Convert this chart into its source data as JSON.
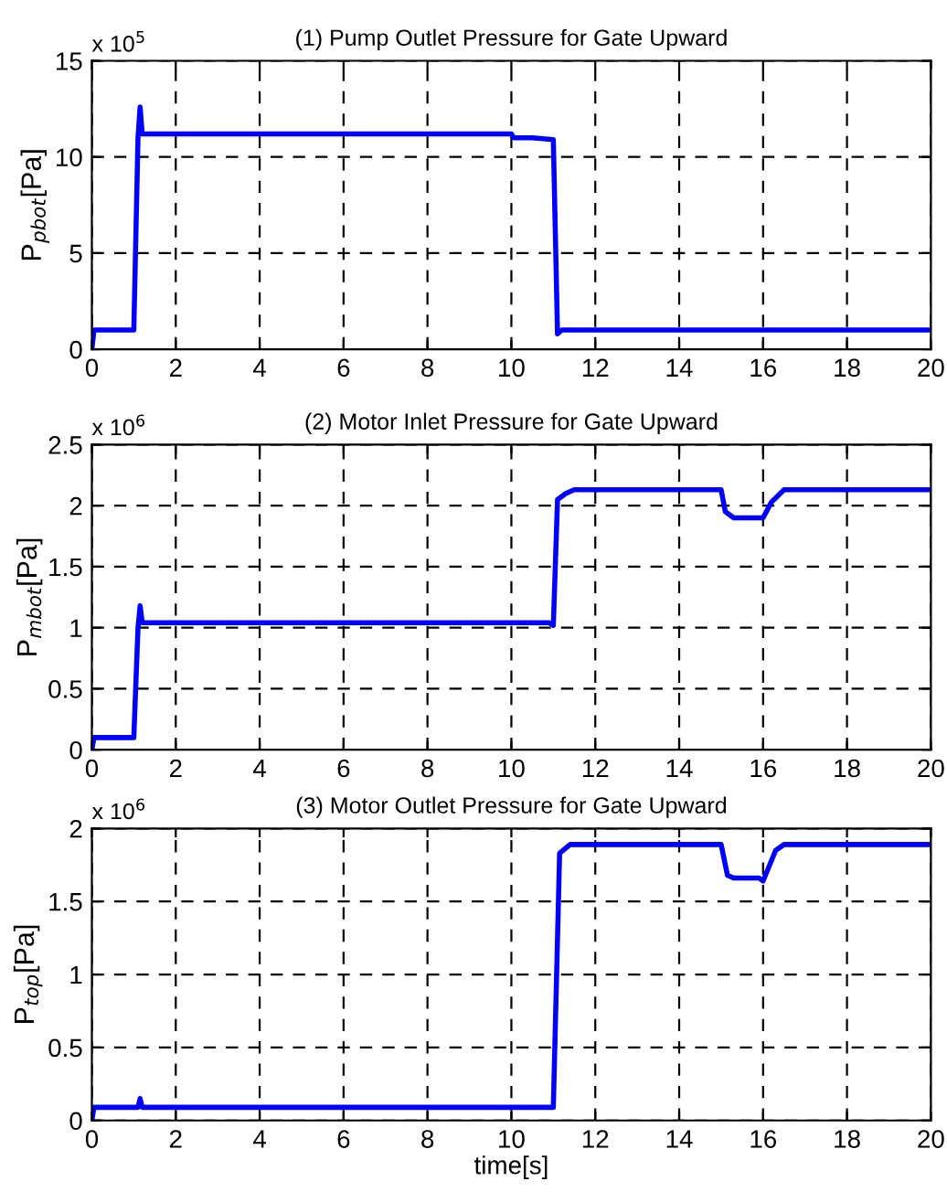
{
  "chart_data": [
    {
      "type": "line",
      "title": "(1) Pump Outlet Pressure for Gate Upward",
      "ylabel": "P$_{pbot}$[Pa]",
      "annotations": [
        "x 10$^{5}$"
      ],
      "x": [
        0,
        0.05,
        1.0,
        1.1,
        1.15,
        1.2,
        10.0,
        10.05,
        10.5,
        11.0,
        11.1,
        11.2,
        20
      ],
      "series": [
        {
          "color": "#0000ff",
          "values": [
            0,
            1.0,
            1.0,
            11,
            12.6,
            11.2,
            11.2,
            11.0,
            11.0,
            10.9,
            0.8,
            1.0,
            1.0
          ]
        }
      ],
      "xlim": [
        0,
        20
      ],
      "xticks": [
        0,
        2,
        4,
        6,
        8,
        10,
        12,
        14,
        16,
        18,
        20
      ],
      "ylim": [
        0,
        15
      ],
      "yticks": [
        0,
        5,
        10,
        15
      ],
      "grid": true,
      "line_style": "solid"
    },
    {
      "type": "line",
      "title": "(2) Motor Inlet Pressure for Gate Upward",
      "ylabel": "P$_{mbot}$[Pa]",
      "annotations": [
        "x 10$^{6}$"
      ],
      "x": [
        0,
        0.05,
        1.0,
        1.1,
        1.15,
        1.2,
        10.9,
        11.0,
        11.1,
        11.3,
        11.5,
        15.0,
        15.1,
        15.3,
        16.0,
        16.2,
        16.5,
        20
      ],
      "series": [
        {
          "color": "#0000ff",
          "values": [
            0,
            0.1,
            0.1,
            1.0,
            1.18,
            1.04,
            1.04,
            1.02,
            2.05,
            2.1,
            2.13,
            2.13,
            1.95,
            1.9,
            1.9,
            2.03,
            2.13,
            2.13
          ]
        }
      ],
      "xlim": [
        0,
        20
      ],
      "xticks": [
        0,
        2,
        4,
        6,
        8,
        10,
        12,
        14,
        16,
        18,
        20
      ],
      "ylim": [
        0,
        2.5
      ],
      "yticks": [
        0,
        0.5,
        1,
        1.5,
        2,
        2.5
      ],
      "grid": true,
      "line_style": "solid"
    },
    {
      "type": "line",
      "title": "(3) Motor Outlet Pressure for Gate Upward",
      "xlabel": "time[s]",
      "ylabel": "P$_{top}$[Pa]",
      "annotations": [
        "x 10$^{6}$"
      ],
      "x": [
        0,
        0.05,
        1.1,
        1.15,
        1.2,
        11.0,
        11.15,
        11.4,
        15.0,
        15.15,
        15.3,
        15.9,
        16.0,
        16.3,
        16.5,
        20
      ],
      "series": [
        {
          "color": "#0000ff",
          "values": [
            0,
            0.09,
            0.09,
            0.15,
            0.09,
            0.09,
            1.83,
            1.89,
            1.89,
            1.68,
            1.66,
            1.66,
            1.64,
            1.85,
            1.89,
            1.89
          ]
        }
      ],
      "xlim": [
        0,
        20
      ],
      "xticks": [
        0,
        2,
        4,
        6,
        8,
        10,
        12,
        14,
        16,
        18,
        20
      ],
      "ylim": [
        0,
        2
      ],
      "yticks": [
        0,
        0.5,
        1,
        1.5,
        2
      ],
      "grid": true,
      "line_style": "solid"
    }
  ]
}
